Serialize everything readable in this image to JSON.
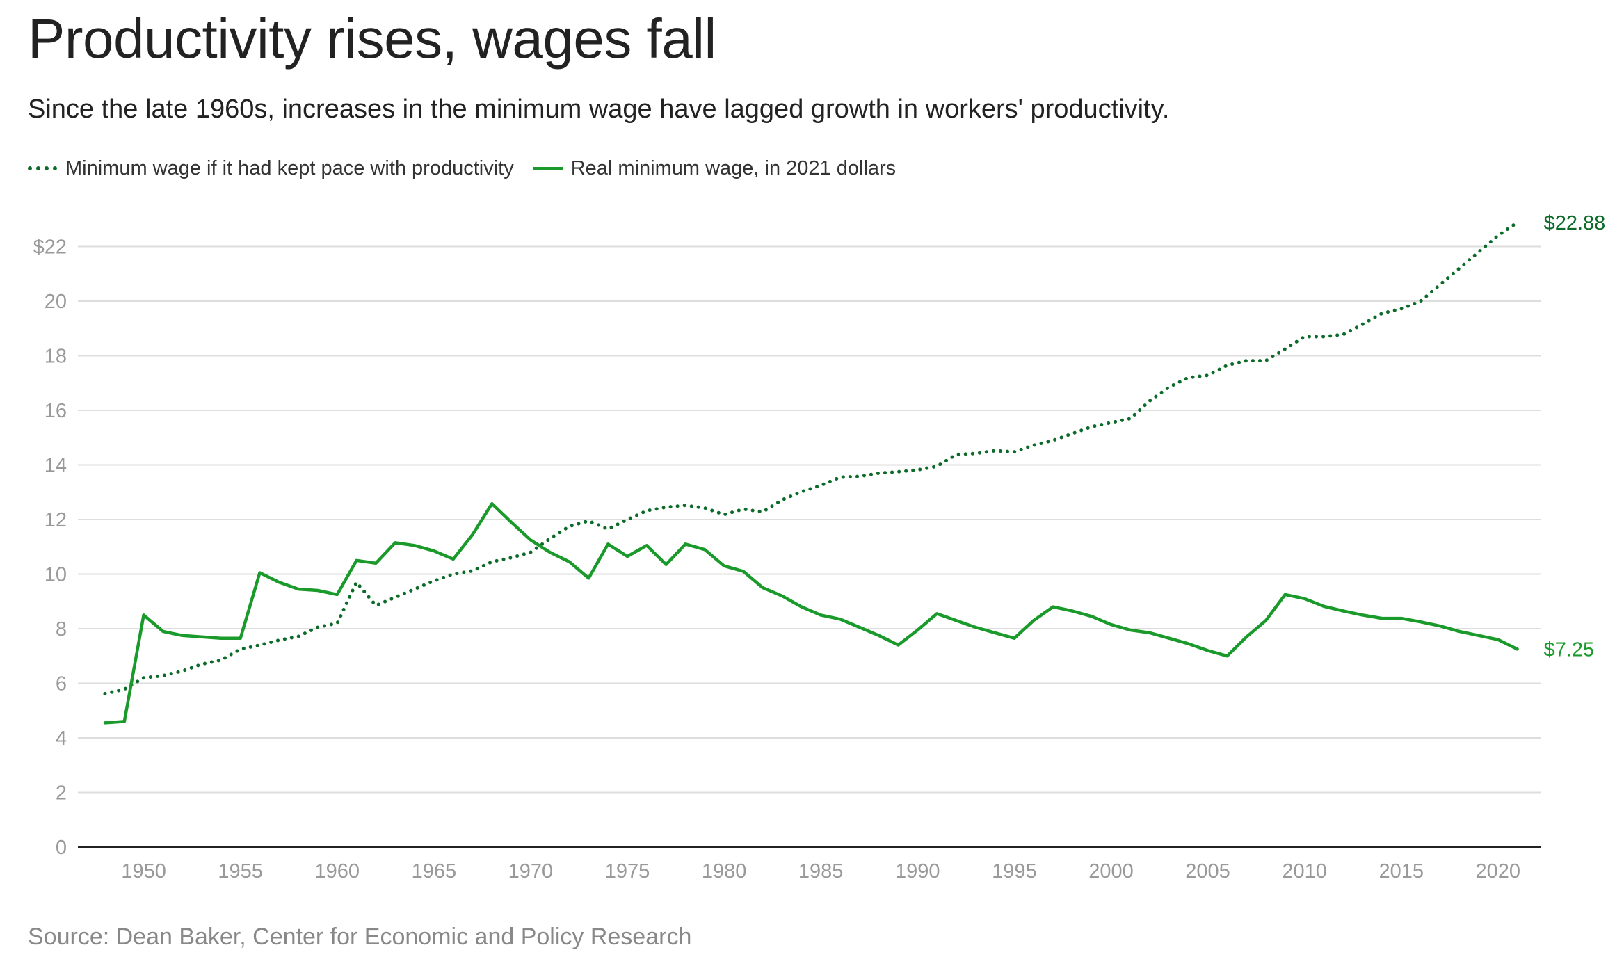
{
  "title": "Productivity rises, wages fall",
  "subtitle": "Since the late 1960s, increases in the minimum wage have lagged growth in workers' productivity.",
  "source": "Source: Dean Baker, Center for Economic and Policy Research",
  "colors": {
    "productivity": "#0d6b2a",
    "real_wage": "#1a9a2a",
    "grid": "#dddddd",
    "axis": "#222222",
    "tick_text": "#999999"
  },
  "chart_data": {
    "type": "line",
    "title": "Productivity rises, wages fall",
    "xlabel": "",
    "ylabel": "",
    "xlim": [
      1948,
      2021
    ],
    "ylim": [
      0,
      22
    ],
    "grid": true,
    "legend_position": "top-left",
    "y_ticks": [
      {
        "value": 0,
        "label": "0"
      },
      {
        "value": 2,
        "label": "2"
      },
      {
        "value": 4,
        "label": "4"
      },
      {
        "value": 6,
        "label": "6"
      },
      {
        "value": 8,
        "label": "8"
      },
      {
        "value": 10,
        "label": "10"
      },
      {
        "value": 12,
        "label": "12"
      },
      {
        "value": 14,
        "label": "14"
      },
      {
        "value": 16,
        "label": "16"
      },
      {
        "value": 18,
        "label": "18"
      },
      {
        "value": 20,
        "label": "20"
      },
      {
        "value": 22,
        "label": "$22"
      }
    ],
    "x_ticks": [
      {
        "value": 1950,
        "label": "1950"
      },
      {
        "value": 1955,
        "label": "1955"
      },
      {
        "value": 1960,
        "label": "1960"
      },
      {
        "value": 1965,
        "label": "1965"
      },
      {
        "value": 1970,
        "label": "1970"
      },
      {
        "value": 1975,
        "label": "1975"
      },
      {
        "value": 1980,
        "label": "1980"
      },
      {
        "value": 1985,
        "label": "1985"
      },
      {
        "value": 1990,
        "label": "1990"
      },
      {
        "value": 1995,
        "label": "1995"
      },
      {
        "value": 2000,
        "label": "2000"
      },
      {
        "value": 2005,
        "label": "2005"
      },
      {
        "value": 2010,
        "label": "2010"
      },
      {
        "value": 2015,
        "label": "2015"
      },
      {
        "value": 2020,
        "label": "2020"
      }
    ],
    "series": [
      {
        "name": "Minimum wage if it had kept pace with productivity",
        "style": "dotted",
        "color": "#0d6b2a",
        "end_label": "$22.88",
        "x": [
          1948,
          1949,
          1950,
          1951,
          1952,
          1953,
          1954,
          1955,
          1956,
          1957,
          1958,
          1959,
          1960,
          1961,
          1962,
          1963,
          1964,
          1965,
          1966,
          1967,
          1968,
          1969,
          1970,
          1971,
          1972,
          1973,
          1974,
          1975,
          1976,
          1977,
          1978,
          1979,
          1980,
          1981,
          1982,
          1983,
          1984,
          1985,
          1986,
          1987,
          1988,
          1989,
          1990,
          1991,
          1992,
          1993,
          1994,
          1995,
          1996,
          1997,
          1998,
          1999,
          2000,
          2001,
          2002,
          2003,
          2004,
          2005,
          2006,
          2007,
          2008,
          2009,
          2010,
          2011,
          2012,
          2013,
          2014,
          2015,
          2016,
          2017,
          2018,
          2019,
          2020,
          2021
        ],
        "y": [
          5.62,
          5.78,
          6.2,
          6.28,
          6.45,
          6.7,
          6.85,
          7.25,
          7.4,
          7.58,
          7.72,
          8.05,
          8.2,
          9.7,
          8.85,
          9.15,
          9.45,
          9.75,
          10.0,
          10.12,
          10.45,
          10.6,
          10.8,
          11.3,
          11.75,
          11.95,
          11.65,
          12.0,
          12.32,
          12.45,
          12.52,
          12.42,
          12.18,
          12.38,
          12.28,
          12.72,
          13.02,
          13.25,
          13.55,
          13.58,
          13.7,
          13.75,
          13.82,
          13.95,
          14.38,
          14.42,
          14.52,
          14.48,
          14.72,
          14.9,
          15.15,
          15.4,
          15.55,
          15.7,
          16.35,
          16.85,
          17.2,
          17.28,
          17.65,
          17.82,
          17.82,
          18.25,
          18.7,
          18.7,
          18.78,
          19.15,
          19.55,
          19.72,
          20.0,
          20.6,
          21.2,
          21.8,
          22.4,
          22.88
        ]
      },
      {
        "name": "Real minimum wage, in 2021 dollars",
        "style": "solid",
        "color": "#1a9a2a",
        "end_label": "$7.25",
        "x": [
          1948,
          1949,
          1950,
          1951,
          1952,
          1953,
          1954,
          1955,
          1956,
          1957,
          1958,
          1959,
          1960,
          1961,
          1962,
          1963,
          1964,
          1965,
          1966,
          1967,
          1968,
          1969,
          1970,
          1971,
          1972,
          1973,
          1974,
          1975,
          1976,
          1977,
          1978,
          1979,
          1980,
          1981,
          1982,
          1983,
          1984,
          1985,
          1986,
          1987,
          1988,
          1989,
          1990,
          1991,
          1992,
          1993,
          1994,
          1995,
          1996,
          1997,
          1998,
          1999,
          2000,
          2001,
          2002,
          2003,
          2004,
          2005,
          2006,
          2007,
          2008,
          2009,
          2010,
          2011,
          2012,
          2013,
          2014,
          2015,
          2016,
          2017,
          2018,
          2019,
          2020,
          2021
        ],
        "y": [
          4.55,
          4.6,
          8.5,
          7.9,
          7.75,
          7.7,
          7.65,
          7.65,
          10.05,
          9.7,
          9.45,
          9.4,
          9.25,
          10.5,
          10.4,
          11.15,
          11.05,
          10.85,
          10.55,
          11.45,
          12.58,
          11.9,
          11.25,
          10.8,
          10.45,
          9.85,
          11.1,
          10.65,
          11.05,
          10.35,
          11.1,
          10.9,
          10.3,
          10.1,
          9.5,
          9.2,
          8.8,
          8.5,
          8.35,
          8.05,
          7.75,
          7.4,
          7.95,
          8.55,
          8.3,
          8.05,
          7.85,
          7.65,
          8.3,
          8.8,
          8.65,
          8.45,
          8.15,
          7.95,
          7.85,
          7.65,
          7.45,
          7.2,
          7.0,
          7.7,
          8.3,
          9.25,
          9.1,
          8.82,
          8.65,
          8.5,
          8.38,
          8.38,
          8.25,
          8.1,
          7.9,
          7.75,
          7.6,
          7.25
        ]
      }
    ]
  }
}
